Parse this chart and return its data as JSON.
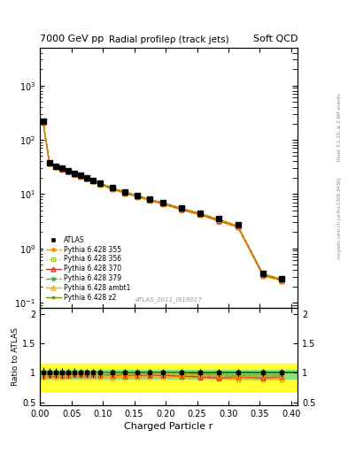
{
  "title_left": "7000 GeV pp",
  "title_right": "Soft QCD",
  "plot_title": "Radial profileρ (track jets)",
  "watermark": "ATLAS_2011_I919017",
  "right_label_top": "Rivet 3.1.10; ≥ 2.6M events",
  "right_label_bottom": "mcplots.cern.ch [arXiv:1306.3436]",
  "xlabel": "Charged Particle r",
  "ylabel_ratio": "Ratio to ATLAS",
  "x_data": [
    0.005,
    0.015,
    0.025,
    0.035,
    0.045,
    0.055,
    0.065,
    0.075,
    0.085,
    0.095,
    0.115,
    0.135,
    0.155,
    0.175,
    0.195,
    0.225,
    0.255,
    0.285,
    0.315,
    0.355,
    0.385
  ],
  "atlas_y": [
    220,
    38,
    33,
    30,
    27,
    24,
    22,
    20,
    18,
    16,
    13,
    11,
    9.5,
    8.0,
    7.0,
    5.5,
    4.5,
    3.5,
    2.7,
    0.35,
    0.28
  ],
  "atlas_yerr": [
    20,
    3,
    2.5,
    2.3,
    2.0,
    1.8,
    1.5,
    1.4,
    1.2,
    1.1,
    0.9,
    0.75,
    0.65,
    0.55,
    0.48,
    0.37,
    0.3,
    0.24,
    0.18,
    0.025,
    0.02
  ],
  "pythia_355_y": [
    210,
    37,
    32,
    29,
    26,
    23.5,
    21.5,
    19.5,
    17.5,
    15.5,
    12.5,
    10.5,
    9.2,
    7.8,
    6.8,
    5.3,
    4.3,
    3.3,
    2.5,
    0.33,
    0.26
  ],
  "pythia_356_y": [
    212,
    37.5,
    32.5,
    29.5,
    26.5,
    24,
    22,
    20,
    18,
    16,
    13,
    10.8,
    9.3,
    7.9,
    6.9,
    5.4,
    4.4,
    3.4,
    2.6,
    0.34,
    0.27
  ],
  "pythia_370_y": [
    215,
    37,
    32,
    29,
    26,
    23.5,
    21.5,
    19.5,
    17.5,
    15.5,
    12.5,
    10.5,
    9.1,
    7.7,
    6.7,
    5.2,
    4.2,
    3.2,
    2.5,
    0.32,
    0.26
  ],
  "pythia_379_y": [
    218,
    37.5,
    32.5,
    29.5,
    26.5,
    24,
    22,
    20,
    18,
    16,
    12.8,
    10.7,
    9.2,
    7.8,
    6.8,
    5.3,
    4.3,
    3.3,
    2.55,
    0.33,
    0.265
  ],
  "pythia_ambt1_y": [
    205,
    36,
    31,
    28,
    25.5,
    23,
    21,
    19,
    17,
    15,
    12,
    10.2,
    8.8,
    7.5,
    6.5,
    5.1,
    4.1,
    3.15,
    2.4,
    0.31,
    0.25
  ],
  "pythia_z2_y": [
    215,
    37.5,
    32.5,
    29.5,
    26.5,
    24,
    22,
    20,
    18,
    16,
    13,
    11,
    9.4,
    8.0,
    7.0,
    5.5,
    4.4,
    3.4,
    2.6,
    0.34,
    0.27
  ],
  "color_355": "#FF8C00",
  "color_356": "#AACC00",
  "color_370": "#CC3333",
  "color_379": "#44AA44",
  "color_ambt1": "#FFAA00",
  "color_z2": "#888800",
  "color_atlas": "#000000",
  "ratio_band_green_lo": 0.9,
  "ratio_band_green_hi": 1.05,
  "ratio_band_yellow_lo": 0.7,
  "ratio_band_yellow_hi": 1.15,
  "ylim_main": [
    0.08,
    5000
  ],
  "ylim_ratio": [
    0.45,
    2.1
  ],
  "xlim": [
    0.0,
    0.41
  ]
}
